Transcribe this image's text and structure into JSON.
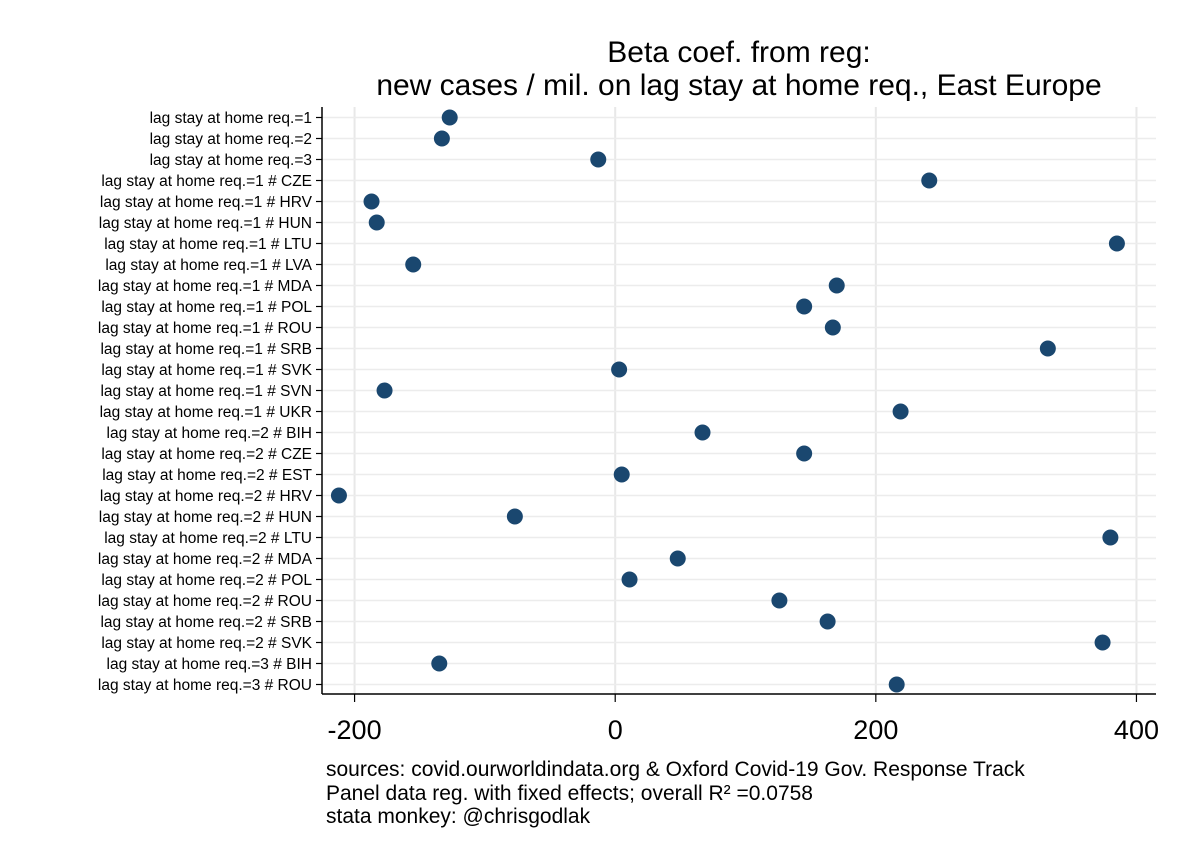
{
  "chart_data": {
    "type": "scatter",
    "title": [
      "Beta coef. from reg:",
      "new cases / mil. on lag stay at home req., East Europe"
    ],
    "xlabel": "",
    "ylabel": "",
    "xlim": [
      -225,
      415
    ],
    "xticks": [
      -200,
      0,
      200,
      400
    ],
    "xtick_labels": [
      "-200",
      "0",
      "200",
      "400"
    ],
    "grid": true,
    "marker_color": "#1a476f",
    "categories": [
      "lag stay at home req.=1",
      "lag stay at home req.=2",
      "lag stay at home req.=3",
      "lag stay at home req.=1 # CZE",
      "lag stay at home req.=1 # HRV",
      "lag stay at home req.=1 # HUN",
      "lag stay at home req.=1 # LTU",
      "lag stay at home req.=1 # LVA",
      "lag stay at home req.=1 # MDA",
      "lag stay at home req.=1 # POL",
      "lag stay at home req.=1 # ROU",
      "lag stay at home req.=1 # SRB",
      "lag stay at home req.=1 # SVK",
      "lag stay at home req.=1 # SVN",
      "lag stay at home req.=1 # UKR",
      "lag stay at home req.=2 # BIH",
      "lag stay at home req.=2 # CZE",
      "lag stay at home req.=2 # EST",
      "lag stay at home req.=2 # HRV",
      "lag stay at home req.=2 # HUN",
      "lag stay at home req.=2 # LTU",
      "lag stay at home req.=2 # MDA",
      "lag stay at home req.=2 # POL",
      "lag stay at home req.=2 # ROU",
      "lag stay at home req.=2 # SRB",
      "lag stay at home req.=2 # SVK",
      "lag stay at home req.=3 # BIH",
      "lag stay at home req.=3 # ROU"
    ],
    "values": [
      -127,
      -133,
      -13,
      241,
      -187,
      -183,
      385,
      -155,
      170,
      145,
      167,
      332,
      3,
      -177,
      219,
      67,
      145,
      5,
      -212,
      -77,
      380,
      48,
      11,
      126,
      163,
      374,
      -135,
      216
    ],
    "notes": [
      "sources: covid.ourworldindata.org & Oxford Covid-19 Gov. Response Track",
      "Panel data reg. with fixed effects; overall R² =0.0758",
      "stata monkey: @chrisgodlak"
    ]
  }
}
